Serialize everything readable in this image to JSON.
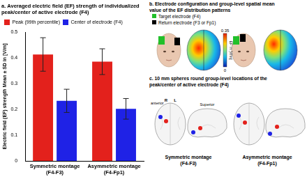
{
  "chart_data": {
    "type": "bar",
    "title": [
      "a. Averaged electric field (EF) strength of individualized",
      "peak/center of active electrode (F4)"
    ],
    "y_label": "Electric field (EF) strength Mean ± SD in [V/m]",
    "categories": [
      "Symmetric montage (F4-F3)",
      "Asymmetric montage (F4-Fp1)"
    ],
    "series": [
      {
        "name": "Peak (99th percentile)",
        "color": "#e3211c",
        "values": [
          0.413,
          0.385
        ],
        "error": [
          0.065,
          0.05
        ]
      },
      {
        "name": "Center of electrode (F4)",
        "color": "#1f22e6",
        "values": [
          0.233,
          0.202
        ],
        "error": [
          0.045,
          0.04
        ]
      }
    ],
    "ylim": [
      0,
      0.5
    ],
    "yticks": [
      0,
      0.1,
      0.2,
      0.3,
      0.4,
      0.5
    ],
    "grid": false,
    "legend": "upper left"
  },
  "panel_b": {
    "title": [
      "b. Electrode configuration and group-level spatial mean",
      "value of the EF distribution patterns"
    ],
    "legend": [
      {
        "name": "Target electrode (F4)",
        "color": "#22c02a"
      },
      {
        "name": "Return electrode (F3 or Fp1)",
        "color": "#000000"
      }
    ],
    "colorbar": {
      "label": "EF in [V/m]",
      "range": [
        0,
        0.35
      ],
      "ticks": [
        0,
        0.35
      ]
    }
  },
  "panel_c": {
    "title": [
      "c. 10 mm spheres round group-level locations of the",
      "peak/center of active electrode (F4)"
    ],
    "orientation_labels": [
      "anterior",
      "R",
      "L",
      "Superior"
    ],
    "montages": [
      "Symmetric montage (F4-F3)",
      "Asymmetric montage (F4-Fp1)"
    ]
  }
}
